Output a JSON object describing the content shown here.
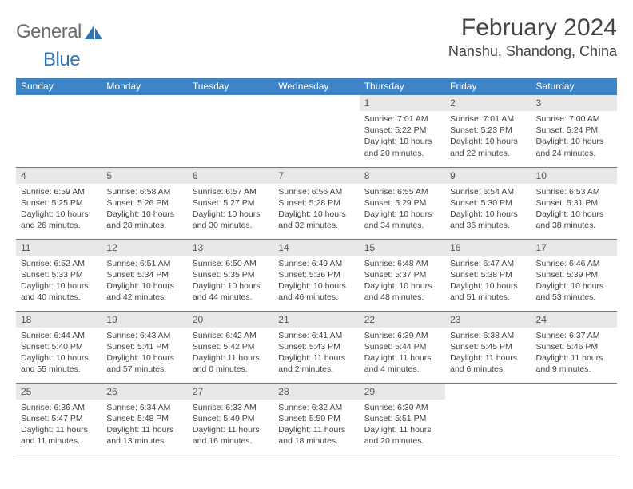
{
  "logo": {
    "text1": "General",
    "text2": "Blue",
    "color_gray": "#6b6b6b",
    "color_blue": "#2e75b6"
  },
  "title": "February 2024",
  "location": "Nanshu, Shandong, China",
  "colors": {
    "header_bg": "#3d85c6",
    "header_text": "#ffffff",
    "daynum_bg": "#e8e8e8",
    "border": "#3d85c6",
    "body_text": "#444444"
  },
  "weekdays": [
    "Sunday",
    "Monday",
    "Tuesday",
    "Wednesday",
    "Thursday",
    "Friday",
    "Saturday"
  ],
  "weeks": [
    [
      null,
      null,
      null,
      null,
      {
        "n": "1",
        "sr": "7:01 AM",
        "ss": "5:22 PM",
        "dl": "10 hours and 20 minutes."
      },
      {
        "n": "2",
        "sr": "7:01 AM",
        "ss": "5:23 PM",
        "dl": "10 hours and 22 minutes."
      },
      {
        "n": "3",
        "sr": "7:00 AM",
        "ss": "5:24 PM",
        "dl": "10 hours and 24 minutes."
      }
    ],
    [
      {
        "n": "4",
        "sr": "6:59 AM",
        "ss": "5:25 PM",
        "dl": "10 hours and 26 minutes."
      },
      {
        "n": "5",
        "sr": "6:58 AM",
        "ss": "5:26 PM",
        "dl": "10 hours and 28 minutes."
      },
      {
        "n": "6",
        "sr": "6:57 AM",
        "ss": "5:27 PM",
        "dl": "10 hours and 30 minutes."
      },
      {
        "n": "7",
        "sr": "6:56 AM",
        "ss": "5:28 PM",
        "dl": "10 hours and 32 minutes."
      },
      {
        "n": "8",
        "sr": "6:55 AM",
        "ss": "5:29 PM",
        "dl": "10 hours and 34 minutes."
      },
      {
        "n": "9",
        "sr": "6:54 AM",
        "ss": "5:30 PM",
        "dl": "10 hours and 36 minutes."
      },
      {
        "n": "10",
        "sr": "6:53 AM",
        "ss": "5:31 PM",
        "dl": "10 hours and 38 minutes."
      }
    ],
    [
      {
        "n": "11",
        "sr": "6:52 AM",
        "ss": "5:33 PM",
        "dl": "10 hours and 40 minutes."
      },
      {
        "n": "12",
        "sr": "6:51 AM",
        "ss": "5:34 PM",
        "dl": "10 hours and 42 minutes."
      },
      {
        "n": "13",
        "sr": "6:50 AM",
        "ss": "5:35 PM",
        "dl": "10 hours and 44 minutes."
      },
      {
        "n": "14",
        "sr": "6:49 AM",
        "ss": "5:36 PM",
        "dl": "10 hours and 46 minutes."
      },
      {
        "n": "15",
        "sr": "6:48 AM",
        "ss": "5:37 PM",
        "dl": "10 hours and 48 minutes."
      },
      {
        "n": "16",
        "sr": "6:47 AM",
        "ss": "5:38 PM",
        "dl": "10 hours and 51 minutes."
      },
      {
        "n": "17",
        "sr": "6:46 AM",
        "ss": "5:39 PM",
        "dl": "10 hours and 53 minutes."
      }
    ],
    [
      {
        "n": "18",
        "sr": "6:44 AM",
        "ss": "5:40 PM",
        "dl": "10 hours and 55 minutes."
      },
      {
        "n": "19",
        "sr": "6:43 AM",
        "ss": "5:41 PM",
        "dl": "10 hours and 57 minutes."
      },
      {
        "n": "20",
        "sr": "6:42 AM",
        "ss": "5:42 PM",
        "dl": "11 hours and 0 minutes."
      },
      {
        "n": "21",
        "sr": "6:41 AM",
        "ss": "5:43 PM",
        "dl": "11 hours and 2 minutes."
      },
      {
        "n": "22",
        "sr": "6:39 AM",
        "ss": "5:44 PM",
        "dl": "11 hours and 4 minutes."
      },
      {
        "n": "23",
        "sr": "6:38 AM",
        "ss": "5:45 PM",
        "dl": "11 hours and 6 minutes."
      },
      {
        "n": "24",
        "sr": "6:37 AM",
        "ss": "5:46 PM",
        "dl": "11 hours and 9 minutes."
      }
    ],
    [
      {
        "n": "25",
        "sr": "6:36 AM",
        "ss": "5:47 PM",
        "dl": "11 hours and 11 minutes."
      },
      {
        "n": "26",
        "sr": "6:34 AM",
        "ss": "5:48 PM",
        "dl": "11 hours and 13 minutes."
      },
      {
        "n": "27",
        "sr": "6:33 AM",
        "ss": "5:49 PM",
        "dl": "11 hours and 16 minutes."
      },
      {
        "n": "28",
        "sr": "6:32 AM",
        "ss": "5:50 PM",
        "dl": "11 hours and 18 minutes."
      },
      {
        "n": "29",
        "sr": "6:30 AM",
        "ss": "5:51 PM",
        "dl": "11 hours and 20 minutes."
      },
      null,
      null
    ]
  ],
  "labels": {
    "sunrise": "Sunrise:",
    "sunset": "Sunset:",
    "daylight": "Daylight:"
  }
}
